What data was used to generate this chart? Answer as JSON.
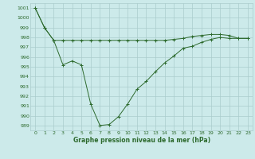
{
  "line1_x": [
    0,
    1,
    2,
    3,
    4,
    5,
    6,
    7,
    8,
    9,
    10,
    11,
    12,
    13,
    14,
    15,
    16,
    17,
    18,
    19,
    20,
    21,
    22,
    23
  ],
  "line1_y": [
    1001,
    999,
    997.7,
    997.7,
    997.7,
    997.7,
    997.7,
    997.7,
    997.7,
    997.7,
    997.7,
    997.7,
    997.7,
    997.7,
    997.7,
    997.8,
    997.9,
    998.1,
    998.2,
    998.3,
    998.3,
    998.2,
    997.9,
    997.9
  ],
  "line2_x": [
    0,
    1,
    2,
    3,
    4,
    5,
    6,
    7,
    8,
    9,
    10,
    11,
    12,
    13,
    14,
    15,
    16,
    17,
    18,
    19,
    20,
    21,
    22,
    23
  ],
  "line2_y": [
    1001,
    999,
    997.7,
    995.2,
    995.6,
    995.2,
    991.2,
    989.0,
    989.1,
    989.9,
    991.2,
    992.7,
    993.5,
    994.5,
    995.4,
    996.1,
    996.9,
    997.1,
    997.5,
    997.8,
    998.0,
    997.9,
    997.9,
    997.9
  ],
  "line_color": "#2d6a2d",
  "bg_color": "#cceaea",
  "grid_color": "#aacccc",
  "xlabel": "Graphe pression niveau de la mer (hPa)",
  "ylim": [
    988.5,
    1001.5
  ],
  "yticks": [
    989,
    990,
    991,
    992,
    993,
    994,
    995,
    996,
    997,
    998,
    999,
    1000,
    1001
  ],
  "xticks": [
    0,
    1,
    2,
    3,
    4,
    5,
    6,
    7,
    8,
    9,
    10,
    11,
    12,
    13,
    14,
    15,
    16,
    17,
    18,
    19,
    20,
    21,
    22,
    23
  ]
}
